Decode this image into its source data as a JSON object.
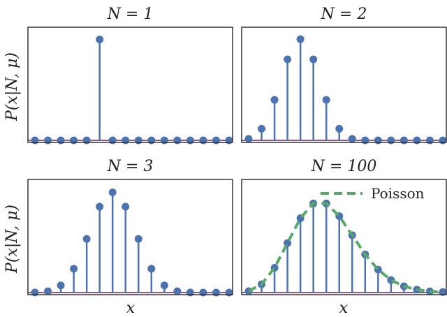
{
  "figure": {
    "ylabel": "P(x|N, μ)",
    "xlabel": "x",
    "colors": {
      "stem": "#4c72b0",
      "baseline": "#8b5a8c",
      "poisson": "#55a868",
      "axes": "#333333"
    }
  },
  "chart_data": [
    {
      "type": "stem",
      "title": "N = 1",
      "x": [
        0,
        1,
        2,
        3,
        4,
        5,
        6,
        7,
        8,
        9,
        10,
        11,
        12,
        13,
        14,
        15
      ],
      "values": [
        0,
        0,
        0,
        0,
        0,
        1,
        0,
        0,
        0,
        0,
        0,
        0,
        0,
        0,
        0,
        0
      ],
      "ylim": [
        0,
        1.1
      ]
    },
    {
      "type": "stem",
      "title": "N = 2",
      "x": [
        0,
        1,
        2,
        3,
        4,
        5,
        6,
        7,
        8,
        9,
        10,
        11,
        12,
        13,
        14,
        15
      ],
      "values": [
        0.0039,
        0.0313,
        0.1094,
        0.2188,
        0.2734,
        0.2188,
        0.1094,
        0.0313,
        0.0039,
        0,
        0,
        0,
        0,
        0,
        0,
        0
      ],
      "ylim": [
        0,
        0.3
      ]
    },
    {
      "type": "stem",
      "title": "N = 3",
      "x": [
        0,
        1,
        2,
        3,
        4,
        5,
        6,
        7,
        8,
        9,
        10,
        11,
        12,
        13,
        14,
        15
      ],
      "values": [
        0.0002,
        0.0029,
        0.0161,
        0.0537,
        0.1208,
        0.1934,
        0.2256,
        0.1934,
        0.1208,
        0.0537,
        0.0161,
        0.0029,
        0.0002,
        0,
        0,
        0
      ],
      "ylim": [
        0,
        0.25
      ]
    },
    {
      "type": "stem",
      "title": "N = 100",
      "x": [
        0,
        1,
        2,
        3,
        4,
        5,
        6,
        7,
        8,
        9,
        10,
        11,
        12,
        13,
        14,
        15
      ],
      "values": [
        0.0025,
        0.0149,
        0.0446,
        0.0892,
        0.1339,
        0.1606,
        0.1606,
        0.1377,
        0.1033,
        0.0688,
        0.0413,
        0.0225,
        0.0113,
        0.0052,
        0.0022,
        0.0009
      ],
      "ylim": [
        0,
        0.2
      ],
      "legend": {
        "label": "Poisson",
        "placement": "top-right"
      },
      "poisson": [
        0.0025,
        0.0149,
        0.0446,
        0.0892,
        0.1339,
        0.1606,
        0.1606,
        0.1377,
        0.1033,
        0.0688,
        0.0413,
        0.0225,
        0.0113,
        0.0052,
        0.0022,
        0.0009
      ]
    }
  ]
}
